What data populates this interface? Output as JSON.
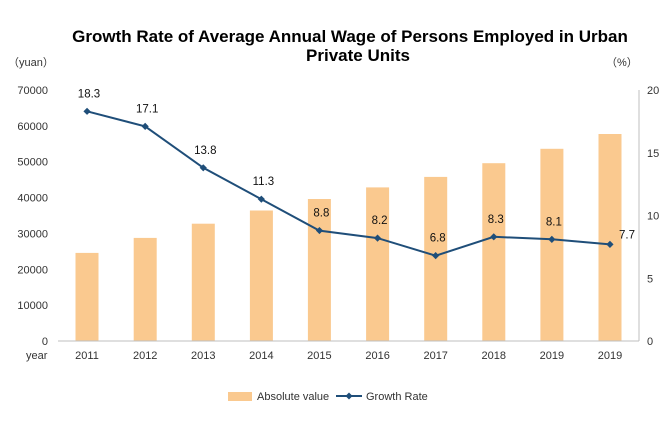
{
  "chart_data": {
    "type": "bar",
    "title_line1": "Growth Rate of Average Annual Wage of Persons Employed in Urban",
    "title_line2": "Private Units",
    "left_unit": "（yuan）",
    "right_unit": "（%）",
    "x_axis_label": "year",
    "categories": [
      "2011",
      "2012",
      "2013",
      "2014",
      "2015",
      "2016",
      "2017",
      "2018",
      "2019",
      "2019"
    ],
    "left_ylim": [
      0,
      70000
    ],
    "left_ticks": [
      0,
      10000,
      20000,
      30000,
      40000,
      50000,
      60000,
      70000
    ],
    "right_ylim": [
      0,
      20
    ],
    "right_ticks": [
      0,
      5,
      10,
      15,
      20
    ],
    "series": [
      {
        "name": "Absolute value",
        "type": "bar",
        "axis": "left",
        "color": "#fac98f",
        "values": [
          24556,
          28752,
          32706,
          36390,
          39589,
          42833,
          45761,
          49575,
          53604,
          57727
        ]
      },
      {
        "name": "Growth Rate",
        "type": "line",
        "axis": "right",
        "color": "#1f4e79",
        "values": [
          18.3,
          17.1,
          13.8,
          11.3,
          8.8,
          8.2,
          6.8,
          8.3,
          8.1,
          7.7
        ],
        "labels": [
          "18.3",
          "17.1",
          "13.8",
          "11.3",
          "8.8",
          "8.2",
          "6.8",
          "8.3",
          "8.1",
          "7.7"
        ]
      }
    ],
    "grid": false,
    "legend_position": "bottom"
  }
}
